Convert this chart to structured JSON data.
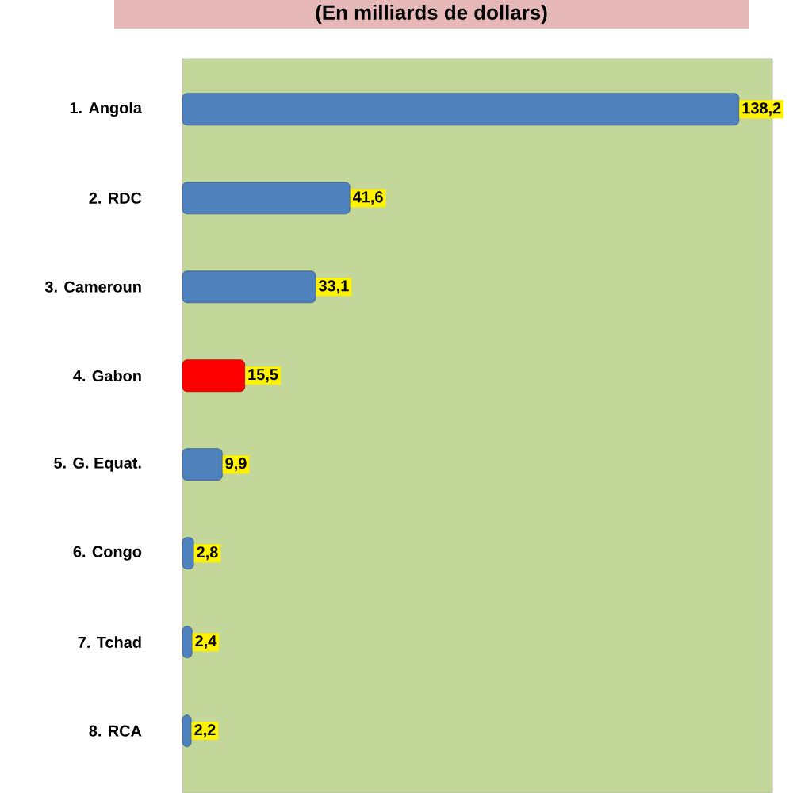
{
  "chart_data": {
    "type": "bar",
    "orientation": "horizontal",
    "title": "(En milliards de dollars)",
    "categories": [
      "1. Angola",
      "2. RDC",
      "3. Cameroun",
      "4. Gabon",
      "5. G. Equat.",
      "6. Congo",
      "7. Tchad",
      "8. RCA"
    ],
    "values": [
      138.2,
      41.6,
      33.1,
      15.5,
      9.9,
      2.8,
      2.4,
      2.2
    ],
    "value_labels": [
      "138,2",
      "41,6",
      "33,1",
      "15,5",
      "9,9",
      "2,8",
      "2,4",
      "2,2"
    ],
    "colors": [
      "#4f81bd",
      "#4f81bd",
      "#4f81bd",
      "#ff0000",
      "#4f81bd",
      "#4f81bd",
      "#4f81bd",
      "#4f81bd"
    ],
    "tick_labels": "y"
  }
}
